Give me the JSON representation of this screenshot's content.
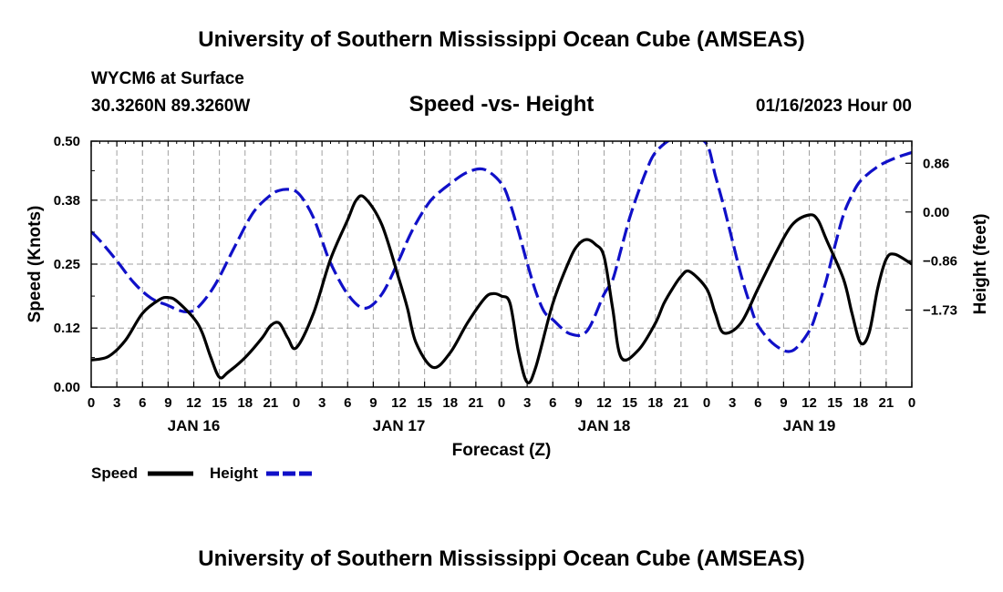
{
  "header": {
    "title": "University of Southern Mississippi Ocean Cube (AMSEAS)",
    "station": "WYCM6 at Surface",
    "location": "30.3260N  89.3260W",
    "chart_title": "Speed -vs- Height",
    "run_time": "01/16/2023 Hour 00"
  },
  "footer": {
    "title": "University of Southern Mississippi Ocean Cube (AMSEAS)"
  },
  "legend": {
    "speed_label": "Speed",
    "height_label": "Height"
  },
  "colors": {
    "speed": "#000000",
    "height": "#1010c8",
    "grid": "#a0a0a0"
  },
  "chart_data": {
    "type": "line",
    "title": "Speed -vs- Height",
    "xlabel": "Forecast (Z)",
    "ylabel": "Speed (Knots)",
    "y2label": "Height (feet)",
    "xlim": [
      0,
      96
    ],
    "ylim": [
      0,
      0.5
    ],
    "y2lim": [
      -3.09,
      1.25
    ],
    "x_ticks": [
      0,
      3,
      6,
      9,
      12,
      15,
      18,
      21,
      24,
      27,
      30,
      33,
      36,
      39,
      42,
      45,
      48,
      51,
      54,
      57,
      60,
      63,
      66,
      69,
      72,
      75,
      78,
      81,
      84,
      87,
      90,
      93,
      96
    ],
    "x_tick_labels": [
      "0",
      "3",
      "6",
      "9",
      "12",
      "15",
      "18",
      "21",
      "0",
      "3",
      "6",
      "9",
      "12",
      "15",
      "18",
      "21",
      "0",
      "3",
      "6",
      "9",
      "12",
      "15",
      "18",
      "21",
      "0",
      "3",
      "6",
      "9",
      "12",
      "15",
      "18",
      "21",
      "0"
    ],
    "y_ticks": [
      0.0,
      0.12,
      0.25,
      0.38,
      0.5
    ],
    "y_tick_labels": [
      "0.00",
      "0.12",
      "0.25",
      "0.38",
      "0.50"
    ],
    "y2_ticks": [
      -1.73,
      -0.86,
      0.0,
      0.86
    ],
    "y2_tick_labels": [
      "−1.73",
      "−0.86",
      "0.00",
      "0.86"
    ],
    "day_labels": [
      {
        "x": 12,
        "label": "JAN 16"
      },
      {
        "x": 36,
        "label": "JAN 17"
      },
      {
        "x": 60,
        "label": "JAN 18"
      },
      {
        "x": 84,
        "label": "JAN 19"
      }
    ],
    "grid": true,
    "series": [
      {
        "name": "Speed",
        "axis": "left",
        "style": "solid",
        "x": [
          0,
          2,
          4,
          6,
          8,
          9,
          10,
          12,
          13,
          14,
          15,
          16,
          18,
          20,
          21,
          22,
          23,
          24,
          26,
          28,
          30,
          31,
          32,
          34,
          36,
          37,
          38,
          40,
          42,
          44,
          46,
          47,
          48,
          49,
          50,
          51,
          52,
          54,
          56,
          57,
          58,
          59,
          60,
          61,
          62,
          64,
          66,
          67,
          68,
          69,
          70,
          72,
          73,
          74,
          76,
          78,
          80,
          82,
          84,
          85,
          86,
          88,
          89,
          90,
          91,
          92,
          93,
          94,
          96
        ],
        "values": [
          0.055,
          0.062,
          0.095,
          0.15,
          0.178,
          0.182,
          0.175,
          0.14,
          0.11,
          0.06,
          0.02,
          0.03,
          0.06,
          0.1,
          0.125,
          0.13,
          0.1,
          0.08,
          0.15,
          0.26,
          0.34,
          0.38,
          0.385,
          0.33,
          0.22,
          0.16,
          0.09,
          0.04,
          0.07,
          0.13,
          0.18,
          0.19,
          0.185,
          0.17,
          0.07,
          0.01,
          0.04,
          0.17,
          0.26,
          0.29,
          0.3,
          0.29,
          0.265,
          0.16,
          0.06,
          0.075,
          0.13,
          0.17,
          0.2,
          0.225,
          0.235,
          0.2,
          0.15,
          0.11,
          0.13,
          0.2,
          0.27,
          0.33,
          0.35,
          0.34,
          0.3,
          0.22,
          0.15,
          0.09,
          0.11,
          0.2,
          0.26,
          0.27,
          0.25
        ]
      },
      {
        "name": "Height",
        "axis": "right",
        "style": "dashed",
        "x": [
          0,
          1,
          3,
          5,
          7,
          9,
          10,
          11,
          12,
          13,
          14,
          15,
          17,
          19,
          21,
          22,
          23,
          24,
          25,
          26,
          27,
          28,
          30,
          32,
          34,
          36,
          37,
          38,
          39,
          40,
          42,
          44,
          46,
          48,
          49,
          50,
          51,
          52,
          53,
          54,
          56,
          58,
          60,
          61,
          62,
          63,
          64,
          65,
          66,
          68,
          70,
          72,
          73,
          74,
          75,
          76,
          77,
          78,
          80,
          82,
          84,
          85,
          86,
          87,
          88,
          89,
          90,
          92,
          94,
          96
        ],
        "values": [
          -0.35,
          -0.5,
          -0.86,
          -1.25,
          -1.52,
          -1.65,
          -1.72,
          -1.76,
          -1.74,
          -1.6,
          -1.4,
          -1.15,
          -0.55,
          0.0,
          0.3,
          0.38,
          0.4,
          0.36,
          0.18,
          -0.1,
          -0.5,
          -0.9,
          -1.45,
          -1.7,
          -1.45,
          -0.85,
          -0.5,
          -0.2,
          0.05,
          0.25,
          0.5,
          0.7,
          0.75,
          0.5,
          0.15,
          -0.35,
          -0.9,
          -1.4,
          -1.76,
          -1.9,
          -2.15,
          -2.1,
          -1.45,
          -1.2,
          -0.65,
          -0.1,
          0.35,
          0.75,
          1.05,
          1.3,
          1.35,
          1.2,
          0.65,
          0.1,
          -0.5,
          -1.1,
          -1.6,
          -2.0,
          -2.35,
          -2.45,
          -2.1,
          -1.7,
          -1.2,
          -0.6,
          -0.05,
          0.3,
          0.55,
          0.8,
          0.95,
          1.05
        ]
      }
    ]
  }
}
